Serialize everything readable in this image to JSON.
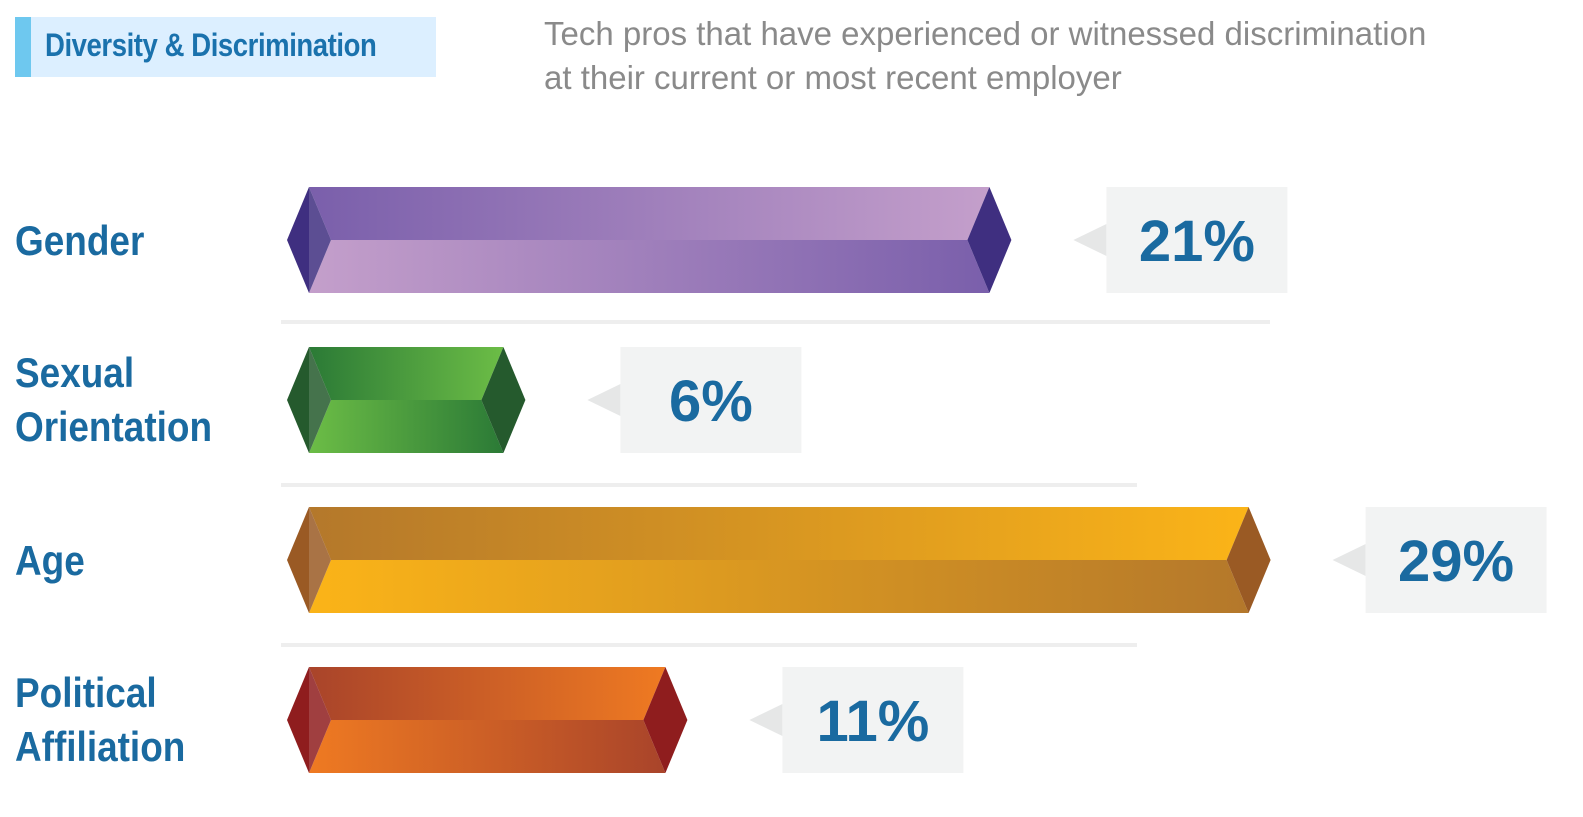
{
  "header": {
    "tag_label": "Diversity & Discrimination",
    "subtitle_lines": [
      "Tech pros that have experienced or witnessed discrimination",
      "at their current or most recent employer"
    ]
  },
  "colors": {
    "label_blue": "#1a6aa0",
    "tag_bg": "#dcefff",
    "tag_accent": "#6ec8ef",
    "value_box_bg": "#f2f3f3",
    "divider": "#eeeeee"
  },
  "chart_data": {
    "type": "bar",
    "orientation": "horizontal",
    "title": "",
    "xlabel": "",
    "ylabel": "",
    "unit": "%",
    "categories": [
      [
        "Gender"
      ],
      [
        "Sexual",
        "Orientation"
      ],
      [
        "Age"
      ],
      [
        "Political",
        "Affiliation"
      ]
    ],
    "values": [
      21,
      6,
      29,
      11
    ],
    "value_labels": [
      "21%",
      "6%",
      "29%",
      "11%"
    ],
    "bar_colors": [
      {
        "light": "#c49fcb",
        "dark": "#7a5fab",
        "cap": "#3f2f80"
      },
      {
        "light": "#6cbd46",
        "dark": "#2b7a36",
        "cap": "#255a2d"
      },
      {
        "light": "#fbb418",
        "dark": "#b4782b",
        "cap": "#9a5a24"
      },
      {
        "light": "#ef7a22",
        "dark": "#a9442a",
        "cap": "#8f1d1e"
      }
    ],
    "grid": false,
    "legend": "none"
  }
}
